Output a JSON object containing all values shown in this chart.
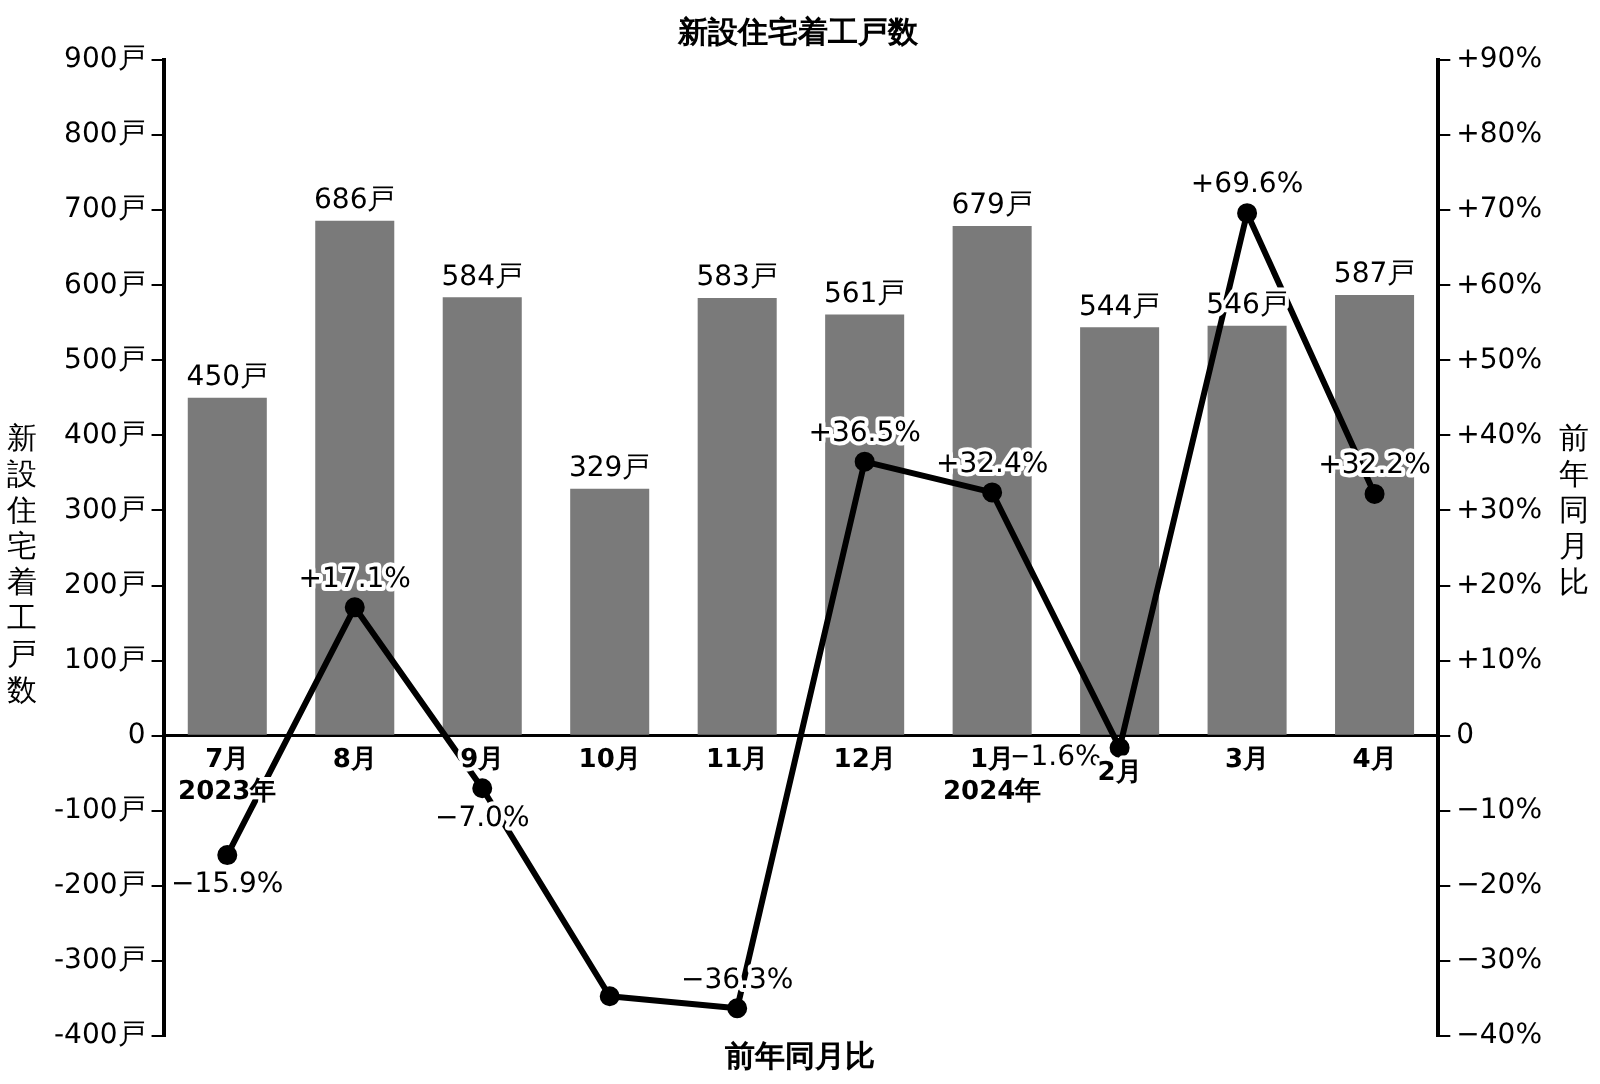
{
  "chart_data": {
    "type": "bar",
    "title": "新設住宅着工戸数",
    "ylabel": "新設住宅着工戸数",
    "y2label": "前年同月比",
    "xlabel": "前年同月比",
    "categories": [
      "7月\n2023年",
      "8月",
      "9月",
      "10月",
      "11月",
      "12月",
      "1月\n2024年",
      "2月",
      "3月",
      "4月"
    ],
    "series": [
      {
        "color": "#7a7a7a",
        "values": [
          450,
          686,
          584,
          329,
          583,
          561,
          679,
          544,
          546,
          587
        ],
        "value_labels": [
          "450戸",
          "686戸",
          "584戸",
          "329戸",
          "583戸",
          "561戸",
          "679戸",
          "544戸",
          "546戸",
          "587戸"
        ]
      },
      {
        "type": "line",
        "axis": "y2",
        "color": "#000000",
        "values": [
          -15.9,
          17.1,
          -7.0,
          -34.7,
          -36.3,
          36.5,
          32.4,
          -1.6,
          69.6,
          32.2
        ],
        "value_labels": [
          "−15.9%",
          "+17.1%",
          "−7.0%",
          null,
          "−36.3%",
          "+36.5%",
          "+32.4%",
          "−1.6%",
          "+69.6%",
          "+32.2%"
        ]
      }
    ],
    "ylim": [
      -400,
      900
    ],
    "yticks": [
      {
        "value": -400,
        "label": "-400戸"
      },
      {
        "value": -300,
        "label": "-300戸"
      },
      {
        "value": -200,
        "label": "-200戸"
      },
      {
        "value": -100,
        "label": "-100戸"
      },
      0,
      {
        "value": 100,
        "label": "100戸"
      },
      {
        "value": 200,
        "label": "200戸"
      },
      {
        "value": 300,
        "label": "300戸"
      },
      {
        "value": 400,
        "label": "400戸"
      },
      {
        "value": 500,
        "label": "500戸"
      },
      {
        "value": 600,
        "label": "600戸"
      },
      {
        "value": 700,
        "label": "700戸"
      },
      {
        "value": 800,
        "label": "800戸"
      },
      {
        "value": 900,
        "label": "900戸"
      }
    ],
    "y2lim": [
      -40,
      90
    ],
    "y2ticks": [
      {
        "value": -40,
        "label": "−40%"
      },
      {
        "value": -30,
        "label": "−30%"
      },
      {
        "value": -20,
        "label": "−20%"
      },
      {
        "value": -10,
        "label": "−10%"
      },
      0,
      {
        "value": 10,
        "label": "+10%"
      },
      {
        "value": 20,
        "label": "+20%"
      },
      {
        "value": 30,
        "label": "+30%"
      },
      {
        "value": 40,
        "label": "+40%"
      },
      {
        "value": 50,
        "label": "+50%"
      },
      {
        "value": 60,
        "label": "+60%"
      },
      {
        "value": 70,
        "label": "+70%"
      },
      {
        "value": 80,
        "label": "+80%"
      },
      {
        "value": 90,
        "label": "+90%"
      }
    ],
    "grid": false,
    "legend": false,
    "marker": "circle",
    "line_style": "solid"
  }
}
